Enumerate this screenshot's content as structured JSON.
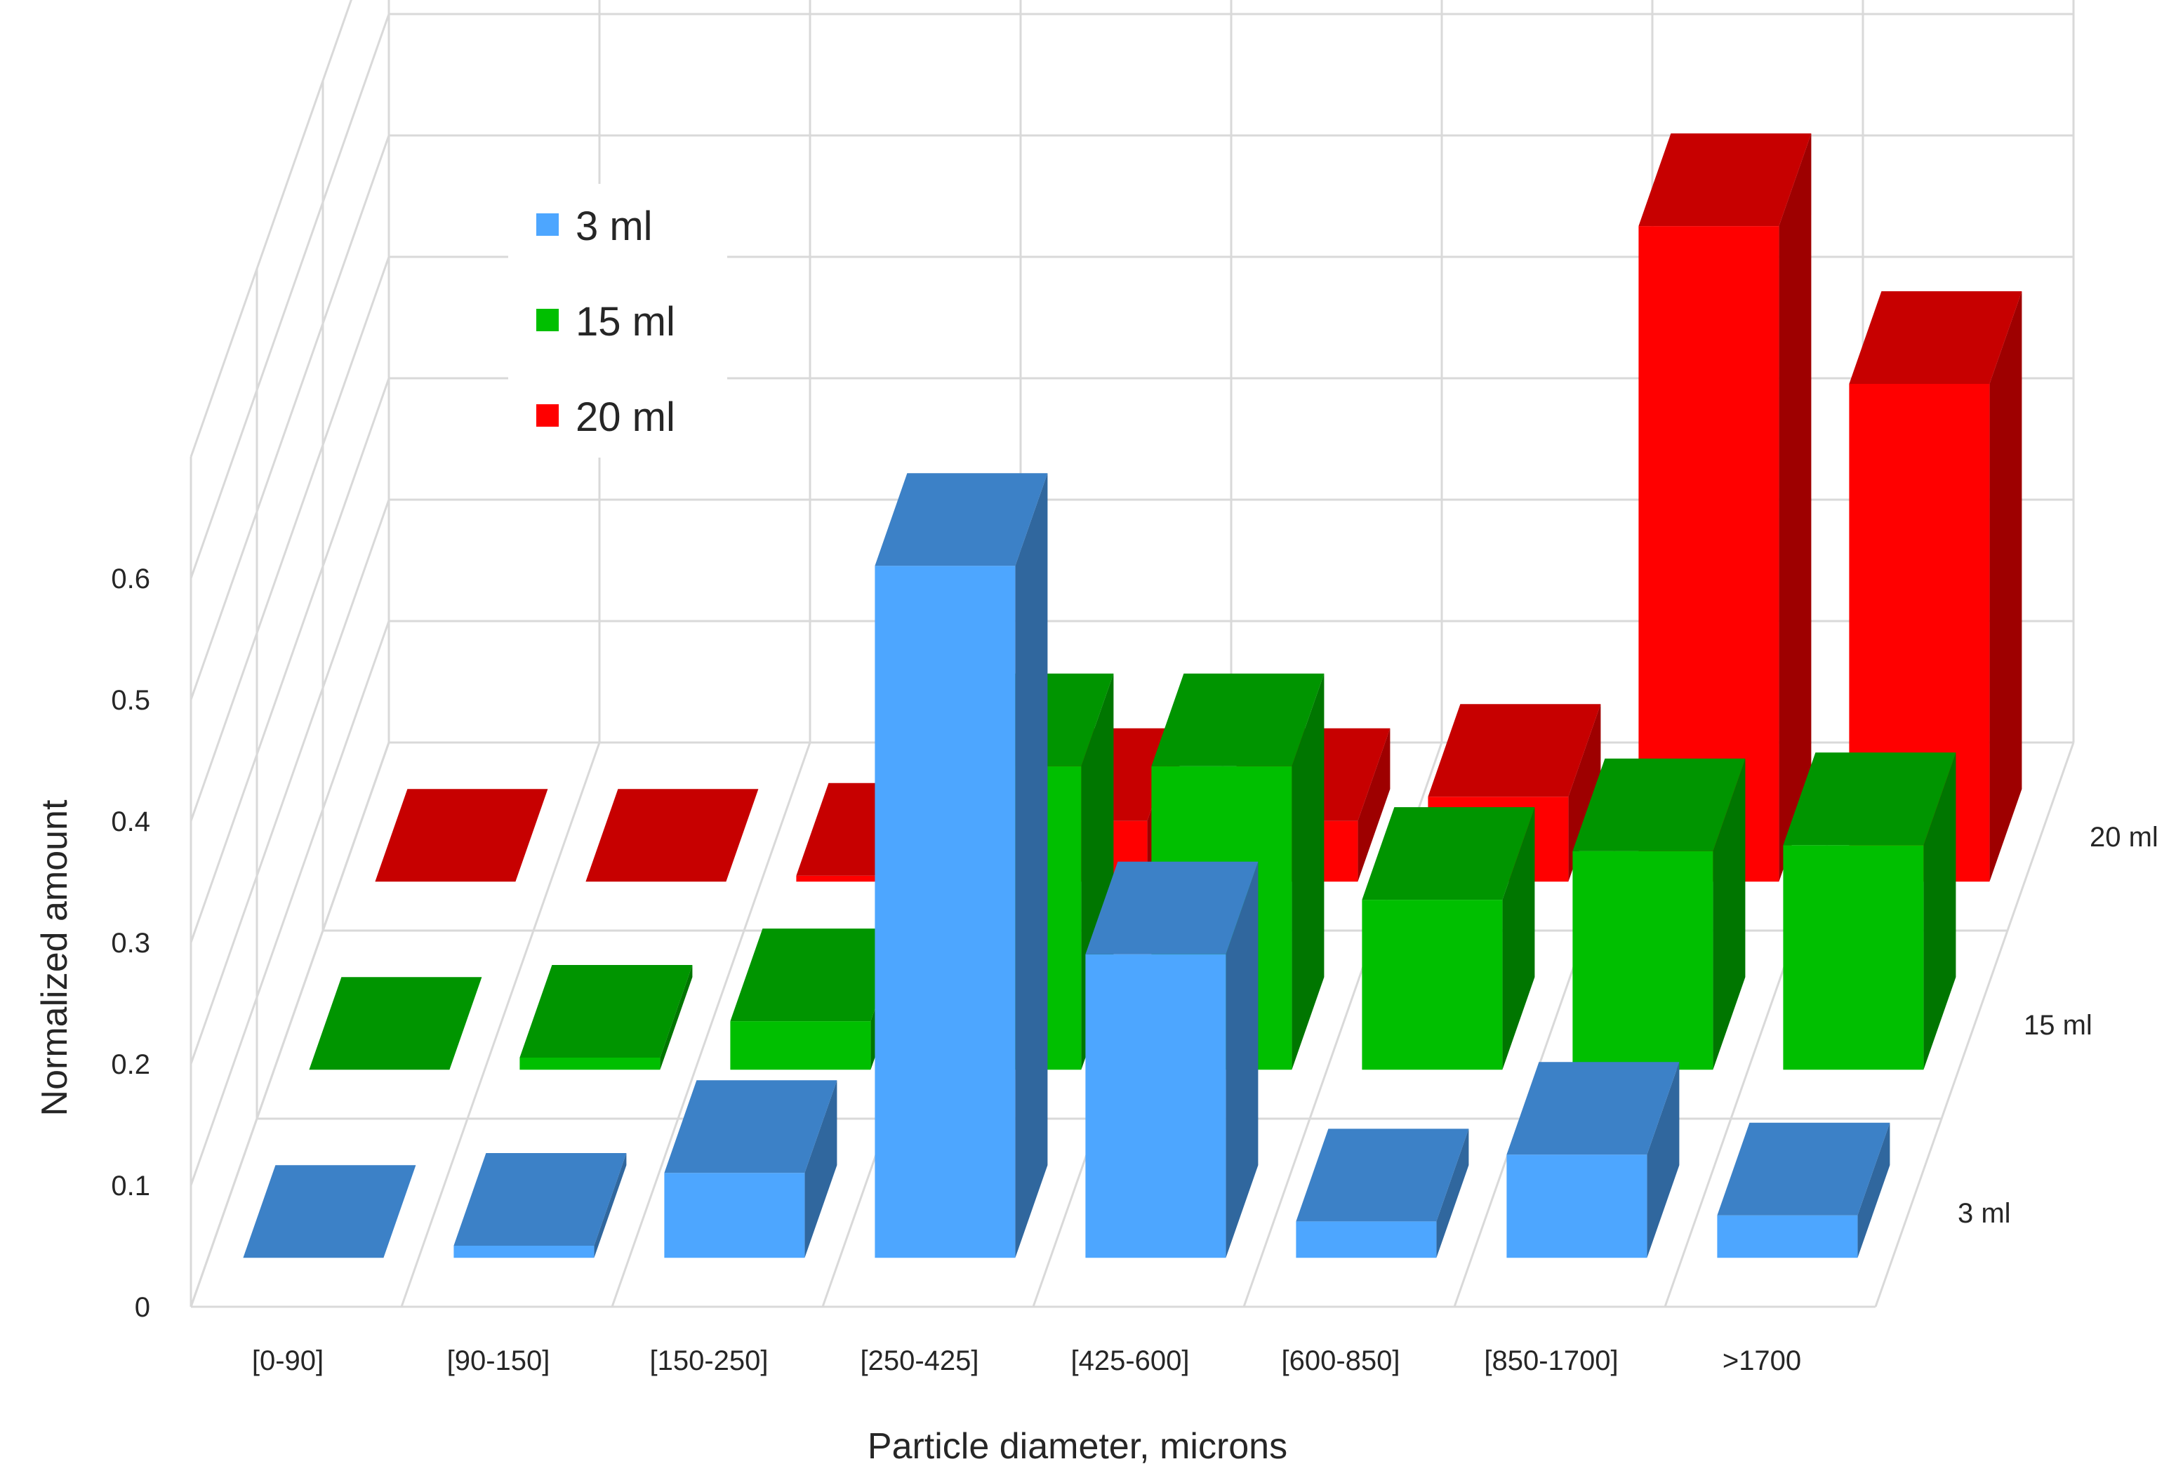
{
  "chart_data": {
    "type": "bar",
    "title": "",
    "xlabel": "Particle diameter, microns",
    "ylabel": "Normalized amount",
    "zlabel": "",
    "categories": [
      "[0-90]",
      "[90-150]",
      "[150-250]",
      "[250-425]",
      "[425-600]",
      "[600-850]",
      "[850-1700]",
      ">1700"
    ],
    "series": [
      {
        "name": "3 ml",
        "color": "#4da6ff",
        "values": [
          0.0,
          0.01,
          0.07,
          0.57,
          0.25,
          0.03,
          0.085,
          0.035
        ]
      },
      {
        "name": "15 ml",
        "color": "#00bf00",
        "values": [
          0.0,
          0.01,
          0.04,
          0.25,
          0.25,
          0.14,
          0.18,
          0.185
        ]
      },
      {
        "name": "20 ml",
        "color": "#ff0000",
        "values": [
          0.0,
          0.0,
          0.005,
          0.05,
          0.05,
          0.07,
          0.54,
          0.41
        ]
      }
    ],
    "depth_labels": [
      "3 ml",
      "15 ml",
      "20 ml"
    ],
    "ylim": [
      0,
      0.6
    ],
    "yticks": [
      "0",
      "0.1",
      "0.2",
      "0.3",
      "0.4",
      "0.5",
      "0.6"
    ],
    "grid": true,
    "legend": {
      "position": "top-left",
      "entries": [
        "3 ml",
        "15 ml",
        "20 ml"
      ]
    }
  }
}
